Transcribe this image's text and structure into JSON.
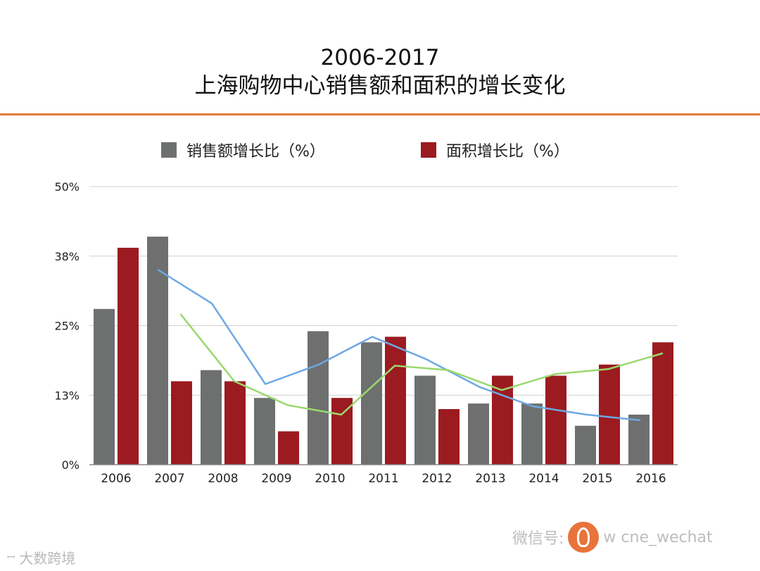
{
  "title": {
    "line1": "2006-2017",
    "line2": "上海购物中心销售额和面积的增长变化"
  },
  "colors": {
    "accent_rule": "#e07b3c",
    "sales_bar": "#6e706f",
    "area_bar": "#9b1b20",
    "sales_trend": "#6ea8e3",
    "area_trend": "#9ad86e",
    "grid": "#d0d0d0"
  },
  "chart_data": {
    "type": "bar",
    "title": "2006-2017 上海购物中心销售额和面积的增长变化",
    "categories": [
      "2006",
      "2007",
      "2008",
      "2009",
      "2010",
      "2011",
      "2012",
      "2013",
      "2014",
      "2015",
      "2016"
    ],
    "series": [
      {
        "name": "销售额增长比（%）",
        "values": [
          28,
          41,
          17,
          12,
          24,
          22,
          16,
          11,
          11,
          7,
          9
        ]
      },
      {
        "name": "面积增长比（%）",
        "values": [
          39,
          15,
          15,
          6,
          12,
          23,
          10,
          16,
          16,
          18,
          22
        ]
      }
    ],
    "trendlines": [
      {
        "name": "sales-trend",
        "start_index": 1,
        "end_index": 10,
        "values": [
          35,
          29,
          14.5,
          18,
          23,
          19,
          14,
          10.5,
          9,
          8
        ]
      },
      {
        "name": "area-trend",
        "start_index": 1,
        "end_index": 10,
        "values": [
          27,
          15,
          10.7,
          9,
          17.8,
          17,
          13.4,
          16.3,
          17.2,
          20
        ]
      }
    ],
    "yticks": [
      "0%",
      "13%",
      "25%",
      "38%",
      "50%"
    ],
    "ylim": [
      0,
      50
    ],
    "grid": true,
    "legend_position": "top"
  },
  "footer": {
    "brand": "大数跨境",
    "mark": "ꟷ"
  },
  "watermark": {
    "text1": "微信号:",
    "text2": "w cne_wechat"
  }
}
